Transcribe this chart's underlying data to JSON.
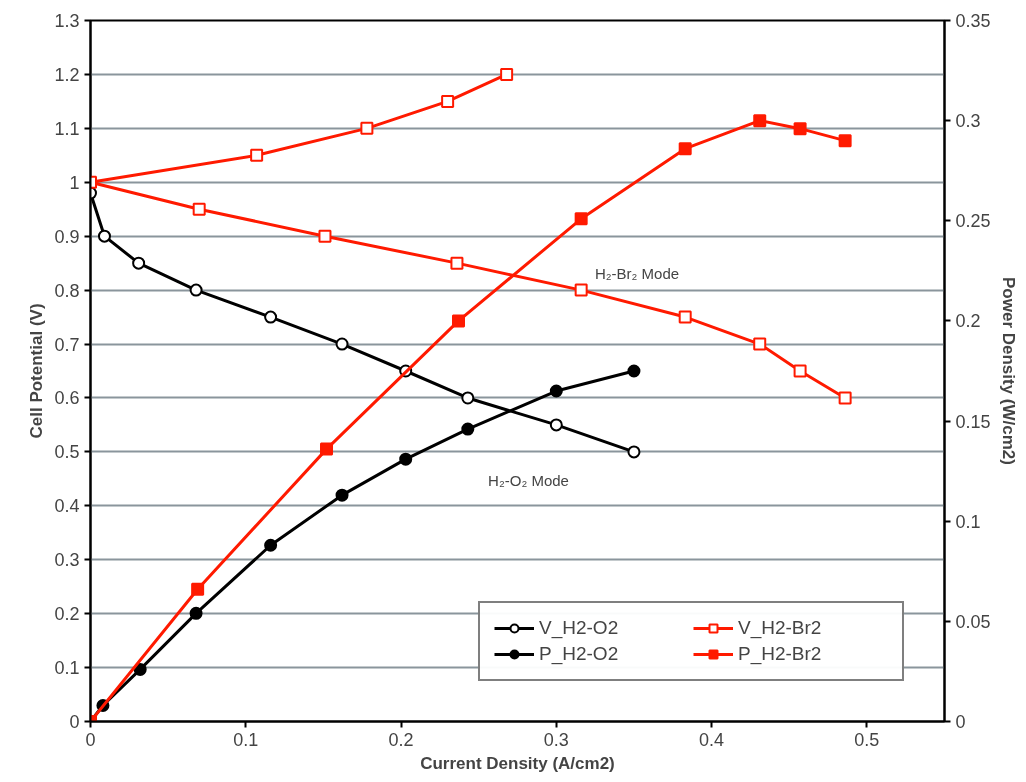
{
  "chart_data": {
    "type": "line",
    "xlabel": "Current Density (A/cm2)",
    "ylabel": "Cell Potential (V)",
    "y2label": "Power Density (W/cm2)",
    "xlim": [
      0,
      0.55
    ],
    "xticks": [
      0,
      0.1,
      0.2,
      0.3,
      0.4,
      0.5
    ],
    "ylim": [
      0,
      1.3
    ],
    "yticks": [
      0,
      0.1,
      0.2,
      0.3,
      0.4,
      0.5,
      0.6,
      0.7,
      0.8,
      0.9,
      1,
      1.1,
      1.2,
      1.3
    ],
    "y2lim": [
      0,
      0.35
    ],
    "y2ticks": [
      0,
      0.05,
      0.1,
      0.15,
      0.2,
      0.25,
      0.3,
      0.35
    ],
    "grid": "y",
    "legend": "bottom right",
    "series": [
      {
        "name": "V_H2-O2",
        "color": "#000000",
        "marker": "circle",
        "x": [
          0,
          0.009,
          0.031,
          0.068,
          0.116,
          0.162,
          0.203,
          0.243,
          0.3,
          0.35
        ],
        "values": [
          0.98,
          0.9,
          0.85,
          0.8,
          0.75,
          0.7,
          0.65,
          0.6,
          0.55,
          0.5
        ]
      },
      {
        "name": "P_H2-O2",
        "color": "#000000",
        "marker": "circle",
        "axis": "y2",
        "x": [
          0,
          0.008,
          0.032,
          0.068,
          0.116,
          0.162,
          0.203,
          0.243,
          0.3,
          0.35
        ],
        "values": [
          0,
          0.008,
          0.026,
          0.054,
          0.088,
          0.113,
          0.131,
          0.146,
          0.165,
          0.175
        ]
      },
      {
        "name": "V_H2-Br2",
        "color": "#ff1a00",
        "marker": "square",
        "x": [
          0.268,
          0.23,
          0.178,
          0.107,
          0,
          0.07,
          0.151,
          0.236,
          0.316,
          0.383,
          0.431,
          0.457,
          0.486
        ],
        "values": [
          1.2,
          1.15,
          1.1,
          1.05,
          1.0,
          0.95,
          0.9,
          0.85,
          0.8,
          0.75,
          0.7,
          0.65,
          0.6
        ]
      },
      {
        "name": "P_H2-Br2",
        "color": "#ff1a00",
        "marker": "square",
        "axis": "y2",
        "x": [
          0,
          0.069,
          0.152,
          0.237,
          0.316,
          0.383,
          0.431,
          0.457,
          0.486
        ],
        "values": [
          0,
          0.066,
          0.136,
          0.2,
          0.251,
          0.286,
          0.3,
          0.296,
          0.29
        ]
      }
    ],
    "annotations": [
      "H₂-Br₂ Mode",
      "H₂-O₂ Mode"
    ]
  }
}
